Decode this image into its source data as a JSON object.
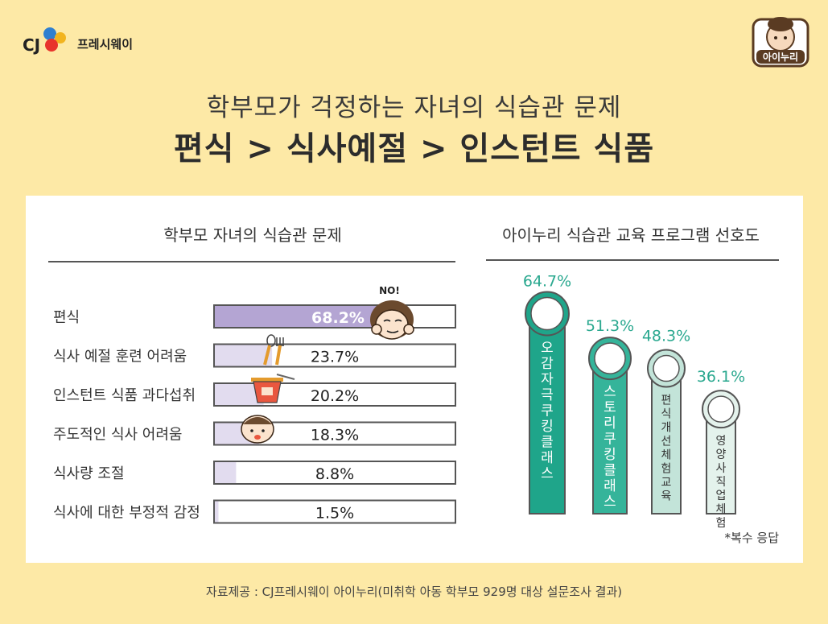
{
  "brand": {
    "name": "프레시웨이",
    "logo_mark": "CJ"
  },
  "badge": {
    "label": "아이누리"
  },
  "headline": {
    "line1": "학부모가 걱정하는 자녀의 식습관 문제",
    "line2": "편식 > 식사예절 > 인스턴트 식품"
  },
  "footer": "자료제공 : CJ프레시웨이 아이누리(미취학 아동 학부모 929명 대상 설문조사 결과)",
  "chart_data": [
    {
      "type": "bar",
      "orientation": "horizontal",
      "title": "학부모 자녀의 식습관 문제",
      "categories": [
        "편식",
        "식사 예절 훈련 어려움",
        "인스턴트 식품 과다섭취",
        "주도적인 식사 어려움",
        "식사량 조절",
        "식사에 대한 부정적 감정"
      ],
      "values": [
        68.2,
        23.7,
        20.2,
        18.3,
        8.8,
        1.5
      ],
      "value_labels": [
        "68.2%",
        "23.7%",
        "20.2%",
        "18.3%",
        "8.8%",
        "1.5%"
      ],
      "annotation": "NO!",
      "xlim": [
        0,
        100
      ],
      "colors": {
        "highlight": "#b4a5d3",
        "fill": "#e2dcef",
        "border": "#555555"
      }
    },
    {
      "type": "bar",
      "orientation": "vertical",
      "title": "아이누리 식습관 교육 프로그램 선호도",
      "categories": [
        "오감자극 쿠킹클래스",
        "스토리 쿠킹클래스",
        "편식 개선 체험교육",
        "영양사 직업체험"
      ],
      "values": [
        64.7,
        51.3,
        48.3,
        36.1
      ],
      "value_labels": [
        "64.7%",
        "51.3%",
        "48.3%",
        "36.1%"
      ],
      "icons": [
        "sense-icon",
        "book-icon",
        "pepper-icon",
        "chef-hat-icon"
      ],
      "note": "*복수 응답",
      "ylim": [
        0,
        70
      ],
      "colors": [
        "#1fa58a",
        "#35b49a",
        "#c3e4d9",
        "#e4f2ec"
      ],
      "label_color": "#2aa88f"
    }
  ]
}
